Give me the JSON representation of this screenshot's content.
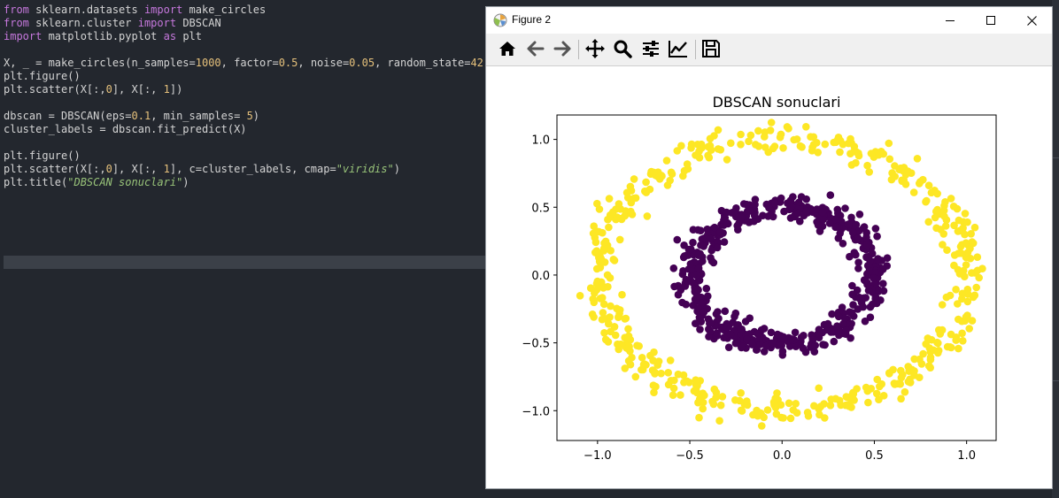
{
  "editor": {
    "lines": [
      [
        [
          "kw",
          "from"
        ],
        [
          "t",
          " sklearn.datasets "
        ],
        [
          "kw",
          "import"
        ],
        [
          "t",
          " make_circles"
        ]
      ],
      [
        [
          "kw",
          "from"
        ],
        [
          "t",
          " sklearn.cluster "
        ],
        [
          "kw",
          "import"
        ],
        [
          "t",
          " DBSCAN"
        ]
      ],
      [
        [
          "kw",
          "import"
        ],
        [
          "t",
          " matplotlib.pyplot "
        ],
        [
          "kw",
          "as"
        ],
        [
          "t",
          " plt"
        ]
      ],
      [],
      [
        [
          "t",
          "X, _ = make_circles(n_samples="
        ],
        [
          "num",
          "1000"
        ],
        [
          "t",
          ", factor="
        ],
        [
          "num",
          "0.5"
        ],
        [
          "t",
          ", noise="
        ],
        [
          "num",
          "0.05"
        ],
        [
          "t",
          ", random_state="
        ],
        [
          "num",
          "42"
        ],
        [
          "t",
          ")"
        ]
      ],
      [
        [
          "t",
          "plt.figure()"
        ]
      ],
      [
        [
          "t",
          "plt.scatter(X[:,"
        ],
        [
          "num",
          "0"
        ],
        [
          "t",
          "], X[:, "
        ],
        [
          "num",
          "1"
        ],
        [
          "t",
          "])"
        ]
      ],
      [],
      [
        [
          "t",
          "dbscan = DBSCAN(eps="
        ],
        [
          "num",
          "0.1"
        ],
        [
          "t",
          ", min_samples= "
        ],
        [
          "num",
          "5"
        ],
        [
          "t",
          ")"
        ]
      ],
      [
        [
          "t",
          "cluster_labels = dbscan.fit_predict(X)"
        ]
      ],
      [],
      [
        [
          "t",
          "plt.figure()"
        ]
      ],
      [
        [
          "t",
          "plt.scatter(X[:,"
        ],
        [
          "num",
          "0"
        ],
        [
          "t",
          "], X[:, "
        ],
        [
          "num",
          "1"
        ],
        [
          "t",
          "], c=cluster_labels, cmap="
        ],
        [
          "str",
          "\"viridis\""
        ],
        [
          "t",
          ")"
        ]
      ],
      [
        [
          "t",
          "plt.title("
        ],
        [
          "str",
          "\"DBSCAN sonuclari\""
        ],
        [
          "t",
          ")"
        ]
      ]
    ]
  },
  "window": {
    "title": "Figure 2",
    "minimize_icon": "minimize-icon",
    "maximize_icon": "maximize-icon",
    "close_icon": "close-icon"
  },
  "toolbar": {
    "tools": [
      "home-icon",
      "back-arrow-icon",
      "forward-arrow-icon",
      "pan-icon",
      "zoom-icon",
      "subplots-config-icon",
      "edit-axis-icon",
      "save-icon"
    ]
  },
  "chart_data": {
    "type": "scatter",
    "title": "DBSCAN sonuclari",
    "xlabel": "",
    "ylabel": "",
    "xlim": [
      -1.22,
      1.16
    ],
    "ylim": [
      -1.22,
      1.18
    ],
    "xticks": [
      "−1.0",
      "−0.5",
      "0.0",
      "0.5",
      "1.0"
    ],
    "xtick_values": [
      -1.0,
      -0.5,
      0.0,
      0.5,
      1.0
    ],
    "yticks": [
      "−1.0",
      "−0.5",
      "0.0",
      "0.5",
      "1.0"
    ],
    "ytick_values": [
      -1.0,
      -0.5,
      0.0,
      0.5,
      1.0
    ],
    "colormap": "viridis",
    "n_samples": 1000,
    "series": [
      {
        "label_value": 0,
        "color": "#440154",
        "shape": "inner ring",
        "n": 500,
        "radius": 0.5,
        "noise": 0.05
      },
      {
        "label_value": 1,
        "color": "#fde725",
        "shape": "outer ring",
        "n": 500,
        "radius": 1.0,
        "noise": 0.05
      }
    ],
    "legend": "none",
    "grid": false
  }
}
